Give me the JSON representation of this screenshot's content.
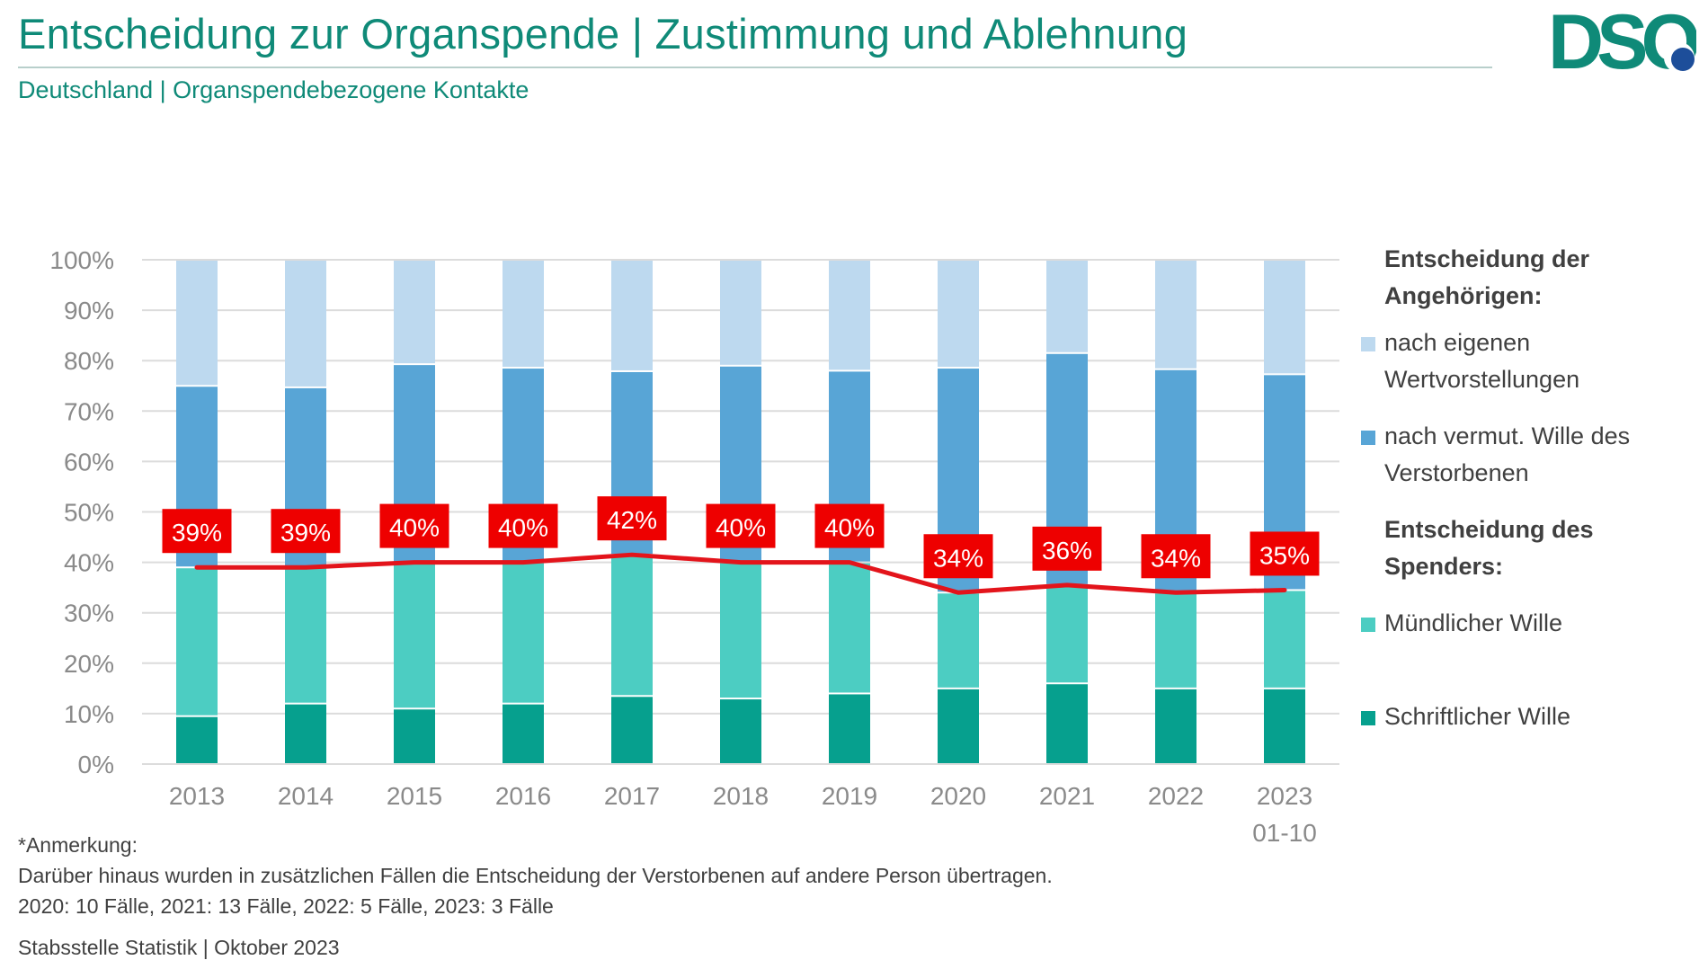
{
  "header": {
    "title": "Entscheidung zur Organspende | Zustimmung und Ablehnung",
    "subtitle": "Deutschland | Organspendebezogene Kontakte",
    "logo_text": "DSO",
    "brand_color": "#0f8a78",
    "logo_dot_color": "#1d4e9a"
  },
  "legend": {
    "group1_title": "Entscheidung der Angehörigen:",
    "group1_title_line1": "Entscheidung der",
    "group1_title_line2": "Angehörigen:",
    "item_eigene_line1": "nach eigenen",
    "item_eigene_line2": "Wertvorstellungen",
    "item_vermutet_line1": "nach vermut. Wille des",
    "item_vermutet_line2": "Verstorbenen",
    "group2_title_line1": "Entscheidung des",
    "group2_title_line2": "Spenders:",
    "item_muendlich": "Mündlicher Wille",
    "item_schriftlich": "Schriftlicher Wille"
  },
  "notes": {
    "heading": "*Anmerkung:",
    "line1": "Darüber hinaus wurden in zusätzlichen Fällen die Entscheidung der Verstorbenen auf andere Person übertragen.",
    "line2": "2020: 10 Fälle, 2021: 13 Fälle, 2022: 5 Fälle, 2023: 3 Fälle",
    "source": "Stabsstelle Statistik | Oktober 2023"
  },
  "chart_data": {
    "type": "bar",
    "stacked": true,
    "percent_stacked": true,
    "title": "Entscheidung zur Organspende | Zustimmung und Ablehnung",
    "xlabel": "",
    "ylabel": "",
    "ylim": [
      0,
      100
    ],
    "yticks": [
      "0%",
      "10%",
      "20%",
      "30%",
      "40%",
      "50%",
      "60%",
      "70%",
      "80%",
      "90%",
      "100%"
    ],
    "grid": true,
    "legend_position": "right",
    "categories": [
      "2013",
      "2014",
      "2015",
      "2016",
      "2017",
      "2018",
      "2019",
      "2020",
      "2021",
      "2022",
      "2023"
    ],
    "category_sublabels": [
      "",
      "",
      "",
      "",
      "",
      "",
      "",
      "",
      "",
      "",
      "01-10"
    ],
    "series": [
      {
        "name": "Schriftlicher Wille",
        "color": "#06a08e",
        "values": [
          9.5,
          12,
          11,
          12,
          13.5,
          13,
          14,
          15,
          16,
          15,
          15
        ]
      },
      {
        "name": "Mündlicher Wille",
        "color": "#4ccdc2",
        "values": [
          29.5,
          27,
          29,
          28,
          28,
          27,
          26,
          19,
          19.5,
          19,
          19.5
        ]
      },
      {
        "name": "nach vermut. Wille des Verstorbenen",
        "color": "#58a5d6",
        "values": [
          36,
          35.7,
          39.3,
          38.6,
          36.4,
          39,
          38,
          44.6,
          46,
          44.3,
          42.8
        ]
      },
      {
        "name": "nach eigenen Wertvorstellungen",
        "color": "#bdd9ef",
        "values": [
          25,
          25.3,
          20.7,
          21.4,
          22.1,
          21,
          22,
          21.4,
          18.5,
          21.7,
          22.7
        ]
      }
    ],
    "line": {
      "name": "Entscheidung des Spenders (gesamt)",
      "color": "#e3141b",
      "values": [
        39,
        39,
        40,
        40,
        41.5,
        40,
        40,
        34,
        35.5,
        34,
        34.5
      ],
      "labels": [
        "39%",
        "39%",
        "40%",
        "40%",
        "42%",
        "40%",
        "40%",
        "34%",
        "36%",
        "34%",
        "35%"
      ]
    }
  }
}
